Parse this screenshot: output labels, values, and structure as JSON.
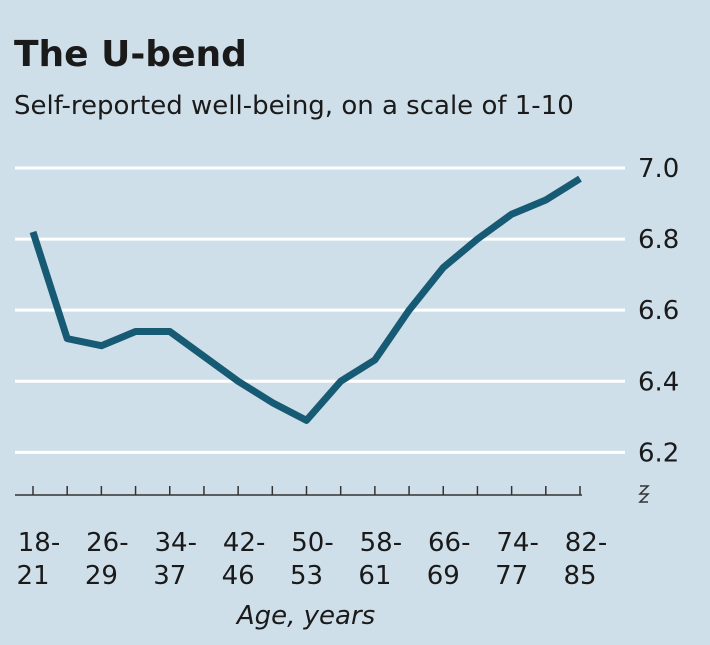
{
  "chart_data": {
    "type": "line",
    "title": "The U-bend",
    "subtitle": "Self-reported well-being, on a scale of 1-10",
    "x_label": "Age, years",
    "categories": [
      "18-21",
      null,
      "26-29",
      null,
      "34-37",
      null,
      "42-46",
      null,
      "50-53",
      null,
      "58-61",
      null,
      "66-69",
      null,
      "74-77",
      null,
      "82-85"
    ],
    "series": [
      {
        "name": "Well-being",
        "color": "#175a73",
        "values": [
          6.82,
          6.52,
          6.5,
          6.54,
          6.54,
          6.47,
          6.4,
          6.34,
          6.29,
          6.4,
          6.46,
          6.6,
          6.72,
          6.8,
          6.87,
          6.91,
          6.97
        ]
      }
    ],
    "ylim": [
      6.08,
      7.04
    ],
    "yticks": [
      {
        "value": 6.2,
        "label": "6.2"
      },
      {
        "value": 6.4,
        "label": "6.4"
      },
      {
        "value": 6.6,
        "label": "6.6"
      },
      {
        "value": 6.8,
        "label": "6.8"
      },
      {
        "value": 7,
        "label": "7.0"
      }
    ],
    "grid": true
  }
}
